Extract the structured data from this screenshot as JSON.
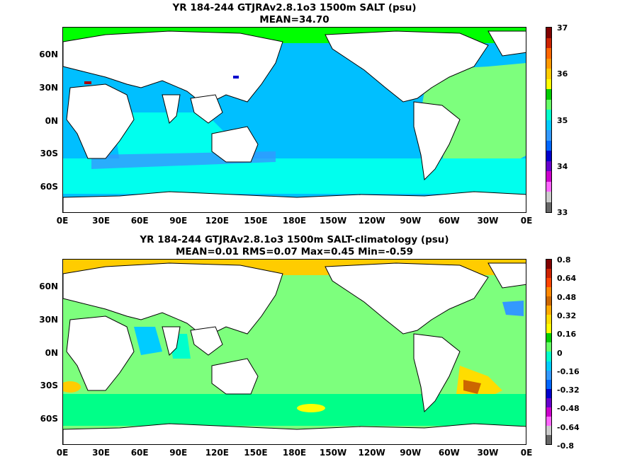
{
  "panels": [
    {
      "title_line1": "YR 184-244 GTJRAv2.8.1o3 1500m SALT (psu)",
      "title_line2": "MEAN=34.70",
      "colorbar_labels": [
        "37",
        "36",
        "35",
        "34",
        "33"
      ],
      "colorbar_colors": [
        "#800000",
        "#cc2200",
        "#ff6600",
        "#ff9900",
        "#ffcc00",
        "#ffff00",
        "#00cc00",
        "#66ff66",
        "#00ffcc",
        "#00ccff",
        "#3399ff",
        "#0066ff",
        "#0000cc",
        "#6600cc",
        "#cc00cc",
        "#ff66ff",
        "#cccccc",
        "#666666"
      ],
      "ocean_main": "#00bfff",
      "ocean_secondary": "#00ffee",
      "ocean_accent": "#7dff7d"
    },
    {
      "title_line1": "YR 184-244 GTJRAv2.8.1o3 1500m SALT-climatology (psu)",
      "title_line2": "MEAN=0.01   RMS=0.07   Max=0.45   Min=-0.59",
      "colorbar_labels": [
        "0.8",
        "0.64",
        "0.48",
        "0.32",
        "0.16",
        "0",
        "-0.16",
        "-0.32",
        "-0.48",
        "-0.64",
        "-0.8"
      ],
      "colorbar_colors": [
        "#800000",
        "#cc2200",
        "#ff4400",
        "#ff8800",
        "#cc6600",
        "#ffaa00",
        "#ffdd00",
        "#ffff00",
        "#00cc00",
        "#66ff66",
        "#00ffcc",
        "#00ccff",
        "#3399ff",
        "#0066ff",
        "#0000cc",
        "#6600cc",
        "#cc00cc",
        "#ff66ff",
        "#cccccc",
        "#666666"
      ],
      "ocean_main": "#7dff7d",
      "ocean_secondary": "#00ff88",
      "ocean_accent": "#ffee00"
    }
  ],
  "lat_labels": [
    "60N",
    "30N",
    "0N",
    "30S",
    "60S"
  ],
  "lon_labels": [
    "0E",
    "30E",
    "60E",
    "90E",
    "120E",
    "150E",
    "180E",
    "150W",
    "120W",
    "90W",
    "60W",
    "30W",
    "0E"
  ]
}
